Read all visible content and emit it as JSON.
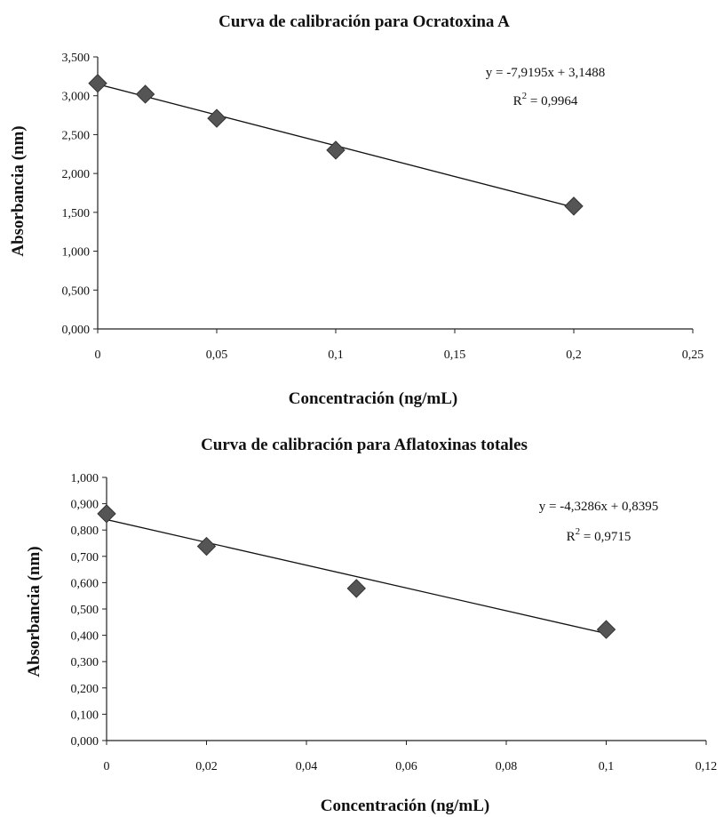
{
  "chart_data": [
    {
      "type": "scatter",
      "title": "Curva de calibración para Ocratoxina A",
      "xlabel": "Concentración (ng/mL)",
      "ylabel": "Absorbancia (nm)",
      "xlim": [
        0,
        0.25
      ],
      "ylim": [
        0,
        3.5
      ],
      "x_ticks": [
        "0",
        "0,05",
        "0,1",
        "0,15",
        "0,2",
        "0,25"
      ],
      "y_ticks": [
        "0,000",
        "0,500",
        "1,000",
        "1,500",
        "2,000",
        "2,500",
        "3,000",
        "3,500"
      ],
      "x_tick_values": [
        0,
        0.05,
        0.1,
        0.15,
        0.2,
        0.25
      ],
      "y_tick_values": [
        0,
        0.5,
        1.0,
        1.5,
        2.0,
        2.5,
        3.0,
        3.5
      ],
      "series": [
        {
          "x": [
            0,
            0.02,
            0.05,
            0.1,
            0.2
          ],
          "y": [
            3.16,
            3.02,
            2.71,
            2.3,
            1.58
          ],
          "marker": "diamond",
          "color": "#555555"
        }
      ],
      "trendline": {
        "slope": -7.9195,
        "intercept": 3.1488,
        "x_range": [
          0,
          0.2
        ]
      },
      "equation": "y = -7,9195x + 3,1488",
      "r2_prefix": "R",
      "r2_value": " = 0,9964",
      "grid": false
    },
    {
      "type": "scatter",
      "title": "Curva de calibración para Aflatoxinas totales",
      "xlabel": "Concentración (ng/mL)",
      "ylabel": "Absorbancia (nm)",
      "xlim": [
        0,
        0.12
      ],
      "ylim": [
        0,
        1.0
      ],
      "x_ticks": [
        "0",
        "0,02",
        "0,04",
        "0,06",
        "0,08",
        "0,1",
        "0,12"
      ],
      "y_ticks": [
        "0,000",
        "0,100",
        "0,200",
        "0,300",
        "0,400",
        "0,500",
        "0,600",
        "0,700",
        "0,800",
        "0,900",
        "1,000"
      ],
      "x_tick_values": [
        0,
        0.02,
        0.04,
        0.06,
        0.08,
        0.1,
        0.12
      ],
      "y_tick_values": [
        0,
        0.1,
        0.2,
        0.3,
        0.4,
        0.5,
        0.6,
        0.7,
        0.8,
        0.9,
        1.0
      ],
      "series": [
        {
          "x": [
            0,
            0.02,
            0.05,
            0.1
          ],
          "y": [
            0.862,
            0.738,
            0.578,
            0.422
          ],
          "marker": "diamond",
          "color": "#555555"
        }
      ],
      "trendline": {
        "slope": -4.3286,
        "intercept": 0.8395,
        "x_range": [
          0,
          0.1
        ]
      },
      "equation": "y = -4,3286x + 0,8395",
      "r2_prefix": "R",
      "r2_value": " = 0,9715",
      "grid": false
    }
  ]
}
